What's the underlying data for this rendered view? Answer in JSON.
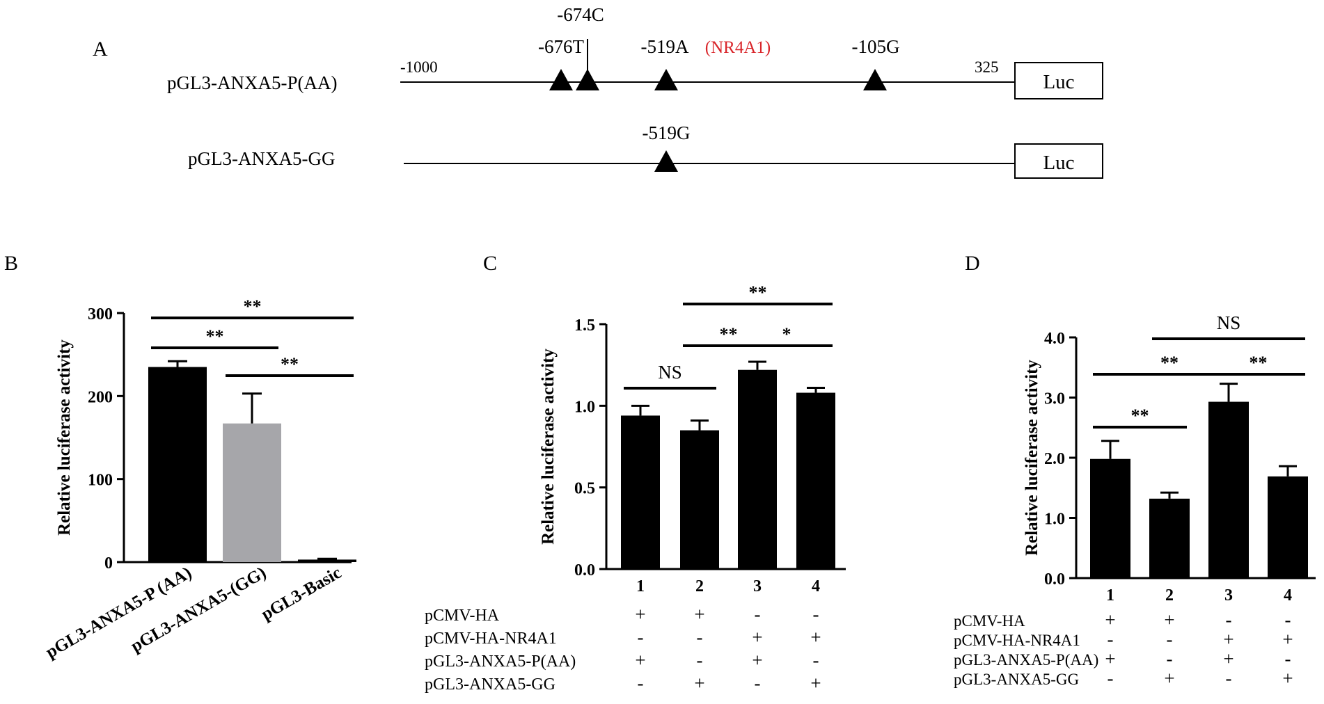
{
  "panel_labels": {
    "a": "A",
    "b": "B",
    "c": "C",
    "d": "D"
  },
  "colors": {
    "bar_black": "#000000",
    "bar_gray": "#a6a6aa",
    "highlight_red": "#d9252a"
  },
  "construct_map": {
    "constructs": [
      {
        "name": "pGL3-ANXA5-P(AA)",
        "start_label": "-1000",
        "end_label": "325",
        "reporter": "Luc",
        "sites": [
          {
            "label": "-676T"
          },
          {
            "label": "-674C"
          },
          {
            "label": "-519A"
          },
          {
            "label": "-105G"
          }
        ],
        "annotation": "(NR4A1)"
      },
      {
        "name": "pGL3-ANXA5-GG",
        "reporter": "Luc",
        "sites": [
          {
            "label": "-519G"
          }
        ]
      }
    ]
  },
  "chart_data": [
    {
      "panel": "B",
      "type": "bar",
      "ylabel": "Relative luciferase activity",
      "ylim": [
        0,
        300
      ],
      "yticks": [
        "0",
        "100",
        "200",
        "300"
      ],
      "categories": [
        "pGL3-ANXA5-P (AA)",
        "pGL3-ANXA5-(GG)",
        "pGL3-Basic"
      ],
      "values": [
        235,
        167,
        3
      ],
      "errors": [
        7,
        36,
        1
      ],
      "bar_colors": [
        "black",
        "gray",
        "black"
      ],
      "significance": [
        {
          "from": 0,
          "to": 2,
          "label": "**"
        },
        {
          "from": 0,
          "to": 1,
          "label": "**"
        },
        {
          "from": 1,
          "to": 2,
          "label": "**"
        }
      ]
    },
    {
      "panel": "C",
      "type": "bar",
      "ylabel": "Relative luciferase activity",
      "ylim": [
        0,
        1.5
      ],
      "yticks": [
        "0.0",
        "0.5",
        "1.0",
        "1.5"
      ],
      "categories": [
        "1",
        "2",
        "3",
        "4"
      ],
      "values": [
        0.94,
        0.85,
        1.22,
        1.08
      ],
      "errors": [
        0.06,
        0.06,
        0.05,
        0.03
      ],
      "significance": [
        {
          "from": 1,
          "to": 3,
          "label": "**"
        },
        {
          "from": 1,
          "to": 2,
          "label": "**"
        },
        {
          "from": 2,
          "to": 3,
          "label": "*"
        },
        {
          "from": 0,
          "to": 1,
          "label": "NS"
        }
      ],
      "condition_rows": [
        {
          "label": "pCMV-HA",
          "marks": [
            "+",
            "+",
            "-",
            "-"
          ]
        },
        {
          "label": "pCMV-HA-NR4A1",
          "marks": [
            "-",
            "-",
            "+",
            "+"
          ]
        },
        {
          "label": "pGL3-ANXA5-P(AA)",
          "marks": [
            "+",
            "-",
            "+",
            "-"
          ]
        },
        {
          "label": "pGL3-ANXA5-GG",
          "marks": [
            "-",
            "+",
            "-",
            "+"
          ]
        }
      ]
    },
    {
      "panel": "D",
      "type": "bar",
      "ylabel": "Relative luciferase activity",
      "ylim": [
        0,
        4.0
      ],
      "yticks": [
        "0.0",
        "1.0",
        "2.0",
        "3.0",
        "4.0"
      ],
      "categories": [
        "1",
        "2",
        "3",
        "4"
      ],
      "values": [
        1.98,
        1.32,
        2.93,
        1.69
      ],
      "errors": [
        0.3,
        0.1,
        0.3,
        0.17
      ],
      "significance": [
        {
          "from": 1,
          "to": 3,
          "label": "NS"
        },
        {
          "from": 0,
          "to": 2,
          "label": "**"
        },
        {
          "from": 2,
          "to": 3,
          "label": "**"
        },
        {
          "from": 0,
          "to": 1,
          "label": "**"
        }
      ],
      "condition_rows": [
        {
          "label": "pCMV-HA",
          "marks": [
            "+",
            "+",
            "-",
            "-"
          ]
        },
        {
          "label": "pCMV-HA-NR4A1",
          "marks": [
            "-",
            "-",
            "+",
            "+"
          ]
        },
        {
          "label": "pGL3-ANXA5-P(AA)",
          "marks": [
            "+",
            "-",
            "+",
            "-"
          ]
        },
        {
          "label": "pGL3-ANXA5-GG",
          "marks": [
            "-",
            "+",
            "-",
            "+"
          ]
        }
      ]
    }
  ]
}
